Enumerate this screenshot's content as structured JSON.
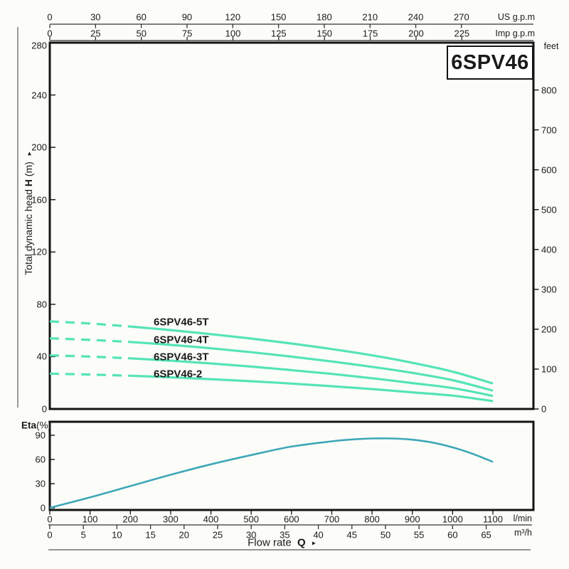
{
  "title": "6SPV46",
  "colors": {
    "head_curve": "#54e4b6",
    "eta_curve": "#3ea8b8",
    "frame": "#141414",
    "axis_line": "#333333",
    "text": "#1a1a1a"
  },
  "axes": {
    "top_us": {
      "unit": "US g.p.m",
      "ticks": [
        0,
        30,
        60,
        90,
        120,
        150,
        180,
        210,
        240,
        270
      ]
    },
    "top_imp": {
      "unit": "Imp g.p.m",
      "ticks": [
        0,
        25,
        50,
        75,
        100,
        125,
        150,
        175,
        200,
        225
      ]
    },
    "left_m": {
      "title_prefix": "Total dynamic head",
      "title_bold": "H",
      "title_suffix": "(m)",
      "ticks": [
        0,
        40,
        80,
        120,
        160,
        200,
        240,
        280
      ]
    },
    "right_feet": {
      "unit": "feet",
      "ticks": [
        0,
        100,
        200,
        300,
        400,
        500,
        600,
        700,
        800
      ]
    },
    "bottom_lmin": {
      "unit": "l/min",
      "ticks": [
        0,
        100,
        200,
        300,
        400,
        500,
        600,
        700,
        800,
        900,
        1000,
        1100
      ]
    },
    "bottom_m3h": {
      "unit": "m³/h",
      "ticks": [
        0,
        5,
        10,
        15,
        20,
        25,
        30,
        35,
        40,
        45,
        50,
        55,
        60,
        65
      ]
    },
    "eta": {
      "label_bold": "Eta",
      "label_suffix": "(%)",
      "ticks": [
        0,
        30,
        60,
        90
      ]
    },
    "flow_label": {
      "prefix": "Flow rate",
      "bold": "Q"
    }
  },
  "chart_data": [
    {
      "type": "line",
      "title": "6SPV46",
      "xlabel": "Flow rate Q",
      "ylabel": "Total dynamic head H (m)",
      "x_units": [
        "l/min",
        "m³/h",
        "US g.p.m",
        "Imp g.p.m"
      ],
      "y_units": [
        "m",
        "feet"
      ],
      "xlim_lmin": [
        0,
        1200
      ],
      "ylim_m": [
        0,
        280
      ],
      "grid": false,
      "x_lmin": [
        0,
        100,
        200,
        300,
        400,
        500,
        600,
        700,
        800,
        900,
        1000,
        1100
      ],
      "series": [
        {
          "name": "6SPV46-5T",
          "dashed_until_lmin": 200,
          "label_pos": [
            216,
            453
          ],
          "head_m": [
            67,
            65.3,
            63,
            60.3,
            57.2,
            53.8,
            50,
            45.8,
            41,
            35.3,
            28.5,
            19.5
          ]
        },
        {
          "name": "6SPV46-4T",
          "dashed_until_lmin": 200,
          "label_pos": [
            216,
            478
          ],
          "head_m": [
            54,
            52.8,
            51.2,
            49,
            46.4,
            43.4,
            40,
            36.3,
            32.2,
            27.6,
            22,
            14
          ]
        },
        {
          "name": "6SPV46-3T",
          "dashed_until_lmin": 200,
          "label_pos": [
            216,
            502
          ],
          "head_m": [
            41,
            40,
            38.7,
            36.9,
            34.8,
            32.4,
            29.7,
            26.8,
            23.5,
            19.8,
            16,
            10
          ]
        },
        {
          "name": "6SPV46-2",
          "dashed_until_lmin": 200,
          "label_pos": [
            216,
            526
          ],
          "head_m": [
            27,
            26.3,
            25.4,
            24.2,
            22.8,
            21.2,
            19.4,
            17.4,
            15.2,
            12.7,
            10.2,
            6
          ]
        }
      ]
    },
    {
      "type": "line",
      "ylabel": "Eta(%)",
      "ylim": [
        0,
        100
      ],
      "grid": false,
      "x_lmin": [
        0,
        100,
        200,
        300,
        400,
        500,
        600,
        700,
        750,
        800,
        850,
        900,
        950,
        1000,
        1050,
        1100
      ],
      "series": [
        {
          "name": "Eta",
          "eta_pct": [
            0,
            13,
            27,
            41,
            54,
            65.5,
            76,
            82.5,
            84.8,
            86,
            86,
            84.5,
            81,
            75,
            67,
            57
          ]
        }
      ]
    }
  ]
}
